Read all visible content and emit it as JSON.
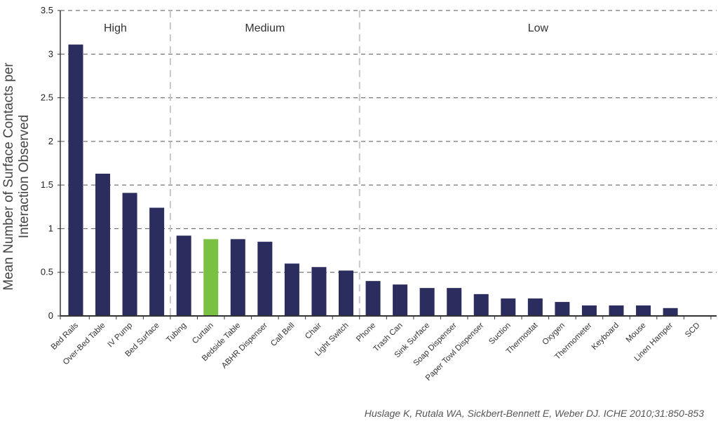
{
  "chart_data": {
    "type": "bar",
    "ylabel_line1": "Mean Number of Surface Contacts per",
    "ylabel_line2": "Interaction Observed",
    "xlabel": "",
    "ylim": [
      0,
      3.5
    ],
    "yticks": [
      "0",
      "0.5",
      "1",
      "1.5",
      "2",
      "2.5",
      "3",
      "3.5"
    ],
    "yticks_values": [
      0,
      0.5,
      1,
      1.5,
      2,
      2.5,
      3,
      3.5
    ],
    "grid": "horizontal dashed",
    "bar_color": "#2b2d5e",
    "highlight_color": "#7ac143",
    "highlight_category": "Curtain",
    "categories": [
      "Bed Rails",
      "Over-Bed Table",
      "IV Pump",
      "Bed Surface",
      "Tubing",
      "Curtain",
      "Bedside Table",
      "ABHR Dispenser",
      "Call Bell",
      "Chair",
      "Light Switch",
      "Phone",
      "Trash Can",
      "Sink Surface",
      "Soap Dispenser",
      "Paper Towl Dispenser",
      "Suction",
      "Thermostat",
      "Oxygen",
      "Thermometer",
      "Keyboard",
      "Mouse",
      "Linen Hamper",
      "SCD"
    ],
    "values": [
      3.11,
      1.63,
      1.41,
      1.24,
      0.92,
      0.88,
      0.88,
      0.85,
      0.6,
      0.56,
      0.52,
      0.4,
      0.36,
      0.32,
      0.32,
      0.25,
      0.2,
      0.2,
      0.16,
      0.12,
      0.12,
      0.12,
      0.09,
      0.0
    ],
    "groups": [
      {
        "label": "High",
        "start": 0,
        "end": 3
      },
      {
        "label": "Medium",
        "start": 4,
        "end": 10
      },
      {
        "label": "Low",
        "start": 11,
        "end": 23
      }
    ]
  },
  "citation": "Huslage K, Rutala WA, Sickbert-Bennett E, Weber DJ.  ICHE 2010;31:850-853"
}
